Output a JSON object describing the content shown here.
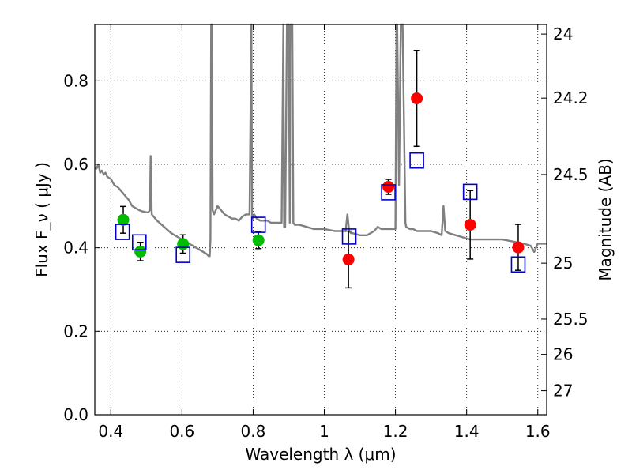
{
  "chart_data": {
    "type": "scatter",
    "xlabel": "Wavelength  λ (μm)",
    "ylabel": "Flux  F_ν  ( μJy )",
    "ylabel_right": "Magnitude (AB)",
    "xlim": [
      0.355,
      1.625
    ],
    "ylim": [
      0.0,
      0.935
    ],
    "grid": true,
    "xticks": [
      {
        "value": 0.4,
        "label": "0.4"
      },
      {
        "value": 0.6,
        "label": "0.6"
      },
      {
        "value": 0.8,
        "label": "0.8"
      },
      {
        "value": 1.0,
        "label": "1"
      },
      {
        "value": 1.2,
        "label": "1.2"
      },
      {
        "value": 1.4,
        "label": "1.4"
      },
      {
        "value": 1.6,
        "label": "1.6"
      }
    ],
    "yticks": [
      {
        "value": 0.0,
        "label": "0.0"
      },
      {
        "value": 0.2,
        "label": "0.2"
      },
      {
        "value": 0.4,
        "label": "0.4"
      },
      {
        "value": 0.6,
        "label": "0.6"
      },
      {
        "value": 0.8,
        "label": "0.8"
      }
    ],
    "yticks_right": [
      {
        "mag": 24,
        "label": "24"
      },
      {
        "mag": 24.2,
        "label": "24.2"
      },
      {
        "mag": 24.5,
        "label": "24.5"
      },
      {
        "mag": 25,
        "label": "25"
      },
      {
        "mag": 25.5,
        "label": "25.5"
      },
      {
        "mag": 26,
        "label": "26"
      },
      {
        "mag": 27,
        "label": "27"
      }
    ],
    "series": [
      {
        "kind": "line",
        "color": "#808080",
        "x": [
          0.355,
          0.36,
          0.365,
          0.37,
          0.375,
          0.38,
          0.385,
          0.39,
          0.4,
          0.41,
          0.42,
          0.43,
          0.44,
          0.45,
          0.46,
          0.47,
          0.48,
          0.49,
          0.5,
          0.505,
          0.51,
          0.512,
          0.515,
          0.52,
          0.53,
          0.55,
          0.57,
          0.6,
          0.62,
          0.64,
          0.66,
          0.67,
          0.675,
          0.678,
          0.68,
          0.682,
          0.684,
          0.686,
          0.69,
          0.7,
          0.71,
          0.72,
          0.73,
          0.74,
          0.75,
          0.76,
          0.77,
          0.78,
          0.79,
          0.795,
          0.797,
          0.8,
          0.803,
          0.81,
          0.82,
          0.83,
          0.84,
          0.85,
          0.86,
          0.87,
          0.88,
          0.885,
          0.887,
          0.89,
          0.895,
          0.9,
          0.903,
          0.905,
          0.91,
          0.913,
          0.917,
          0.92,
          0.93,
          0.95,
          0.97,
          1.0,
          1.03,
          1.06,
          1.065,
          1.07,
          1.075,
          1.08,
          1.1,
          1.12,
          1.14,
          1.15,
          1.16,
          1.17,
          1.2,
          1.203,
          1.205,
          1.21,
          1.215,
          1.22,
          1.228,
          1.23,
          1.24,
          1.25,
          1.26,
          1.3,
          1.32,
          1.33,
          1.335,
          1.34,
          1.35,
          1.37,
          1.39,
          1.41,
          1.43,
          1.46,
          1.5,
          1.53,
          1.56,
          1.58,
          1.59,
          1.6,
          1.625
        ],
        "values": [
          0.59,
          0.59,
          0.6,
          0.58,
          0.585,
          0.575,
          0.58,
          0.57,
          0.565,
          0.55,
          0.545,
          0.535,
          0.525,
          0.515,
          0.5,
          0.495,
          0.49,
          0.487,
          0.485,
          0.485,
          0.49,
          0.62,
          0.48,
          0.475,
          0.465,
          0.45,
          0.435,
          0.42,
          0.41,
          0.4,
          0.39,
          0.385,
          0.38,
          0.38,
          0.42,
          0.94,
          0.94,
          0.49,
          0.48,
          0.5,
          0.49,
          0.48,
          0.475,
          0.47,
          0.47,
          0.465,
          0.475,
          0.48,
          0.48,
          0.94,
          0.47,
          0.47,
          0.48,
          0.47,
          0.465,
          0.465,
          0.465,
          0.46,
          0.46,
          0.46,
          0.46,
          0.94,
          0.45,
          0.45,
          0.94,
          0.94,
          0.46,
          0.94,
          0.94,
          0.46,
          0.455,
          0.455,
          0.455,
          0.45,
          0.445,
          0.445,
          0.44,
          0.44,
          0.48,
          0.44,
          0.435,
          0.435,
          0.43,
          0.43,
          0.44,
          0.45,
          0.445,
          0.445,
          0.445,
          0.94,
          0.94,
          0.55,
          0.94,
          0.94,
          0.46,
          0.45,
          0.445,
          0.445,
          0.44,
          0.44,
          0.435,
          0.43,
          0.5,
          0.44,
          0.435,
          0.43,
          0.425,
          0.42,
          0.42,
          0.42,
          0.42,
          0.415,
          0.41,
          0.405,
          0.39,
          0.41,
          0.41
        ]
      },
      {
        "kind": "markers",
        "marker": "circle",
        "color": "#00bb00",
        "x": [
          0.435,
          0.483,
          0.603,
          0.815
        ],
        "values": [
          0.467,
          0.391,
          0.409,
          0.418
        ],
        "err": [
          0.032,
          0.022,
          0.022,
          0.02
        ]
      },
      {
        "kind": "markers",
        "marker": "circle",
        "color": "#ff0000",
        "x": [
          1.068,
          1.18,
          1.26,
          1.41,
          1.545
        ],
        "values": [
          0.372,
          0.546,
          0.758,
          0.455,
          0.401
        ],
        "err": [
          0.068,
          0.018,
          0.115,
          0.082,
          0.055
        ]
      },
      {
        "kind": "markers",
        "marker": "square",
        "color": "#0000cc",
        "x": [
          0.433,
          0.48,
          0.603,
          0.815,
          1.07,
          1.18,
          1.26,
          1.41,
          1.545
        ],
        "values": [
          0.438,
          0.413,
          0.383,
          0.455,
          0.427,
          0.533,
          0.609,
          0.534,
          0.36
        ]
      }
    ]
  }
}
